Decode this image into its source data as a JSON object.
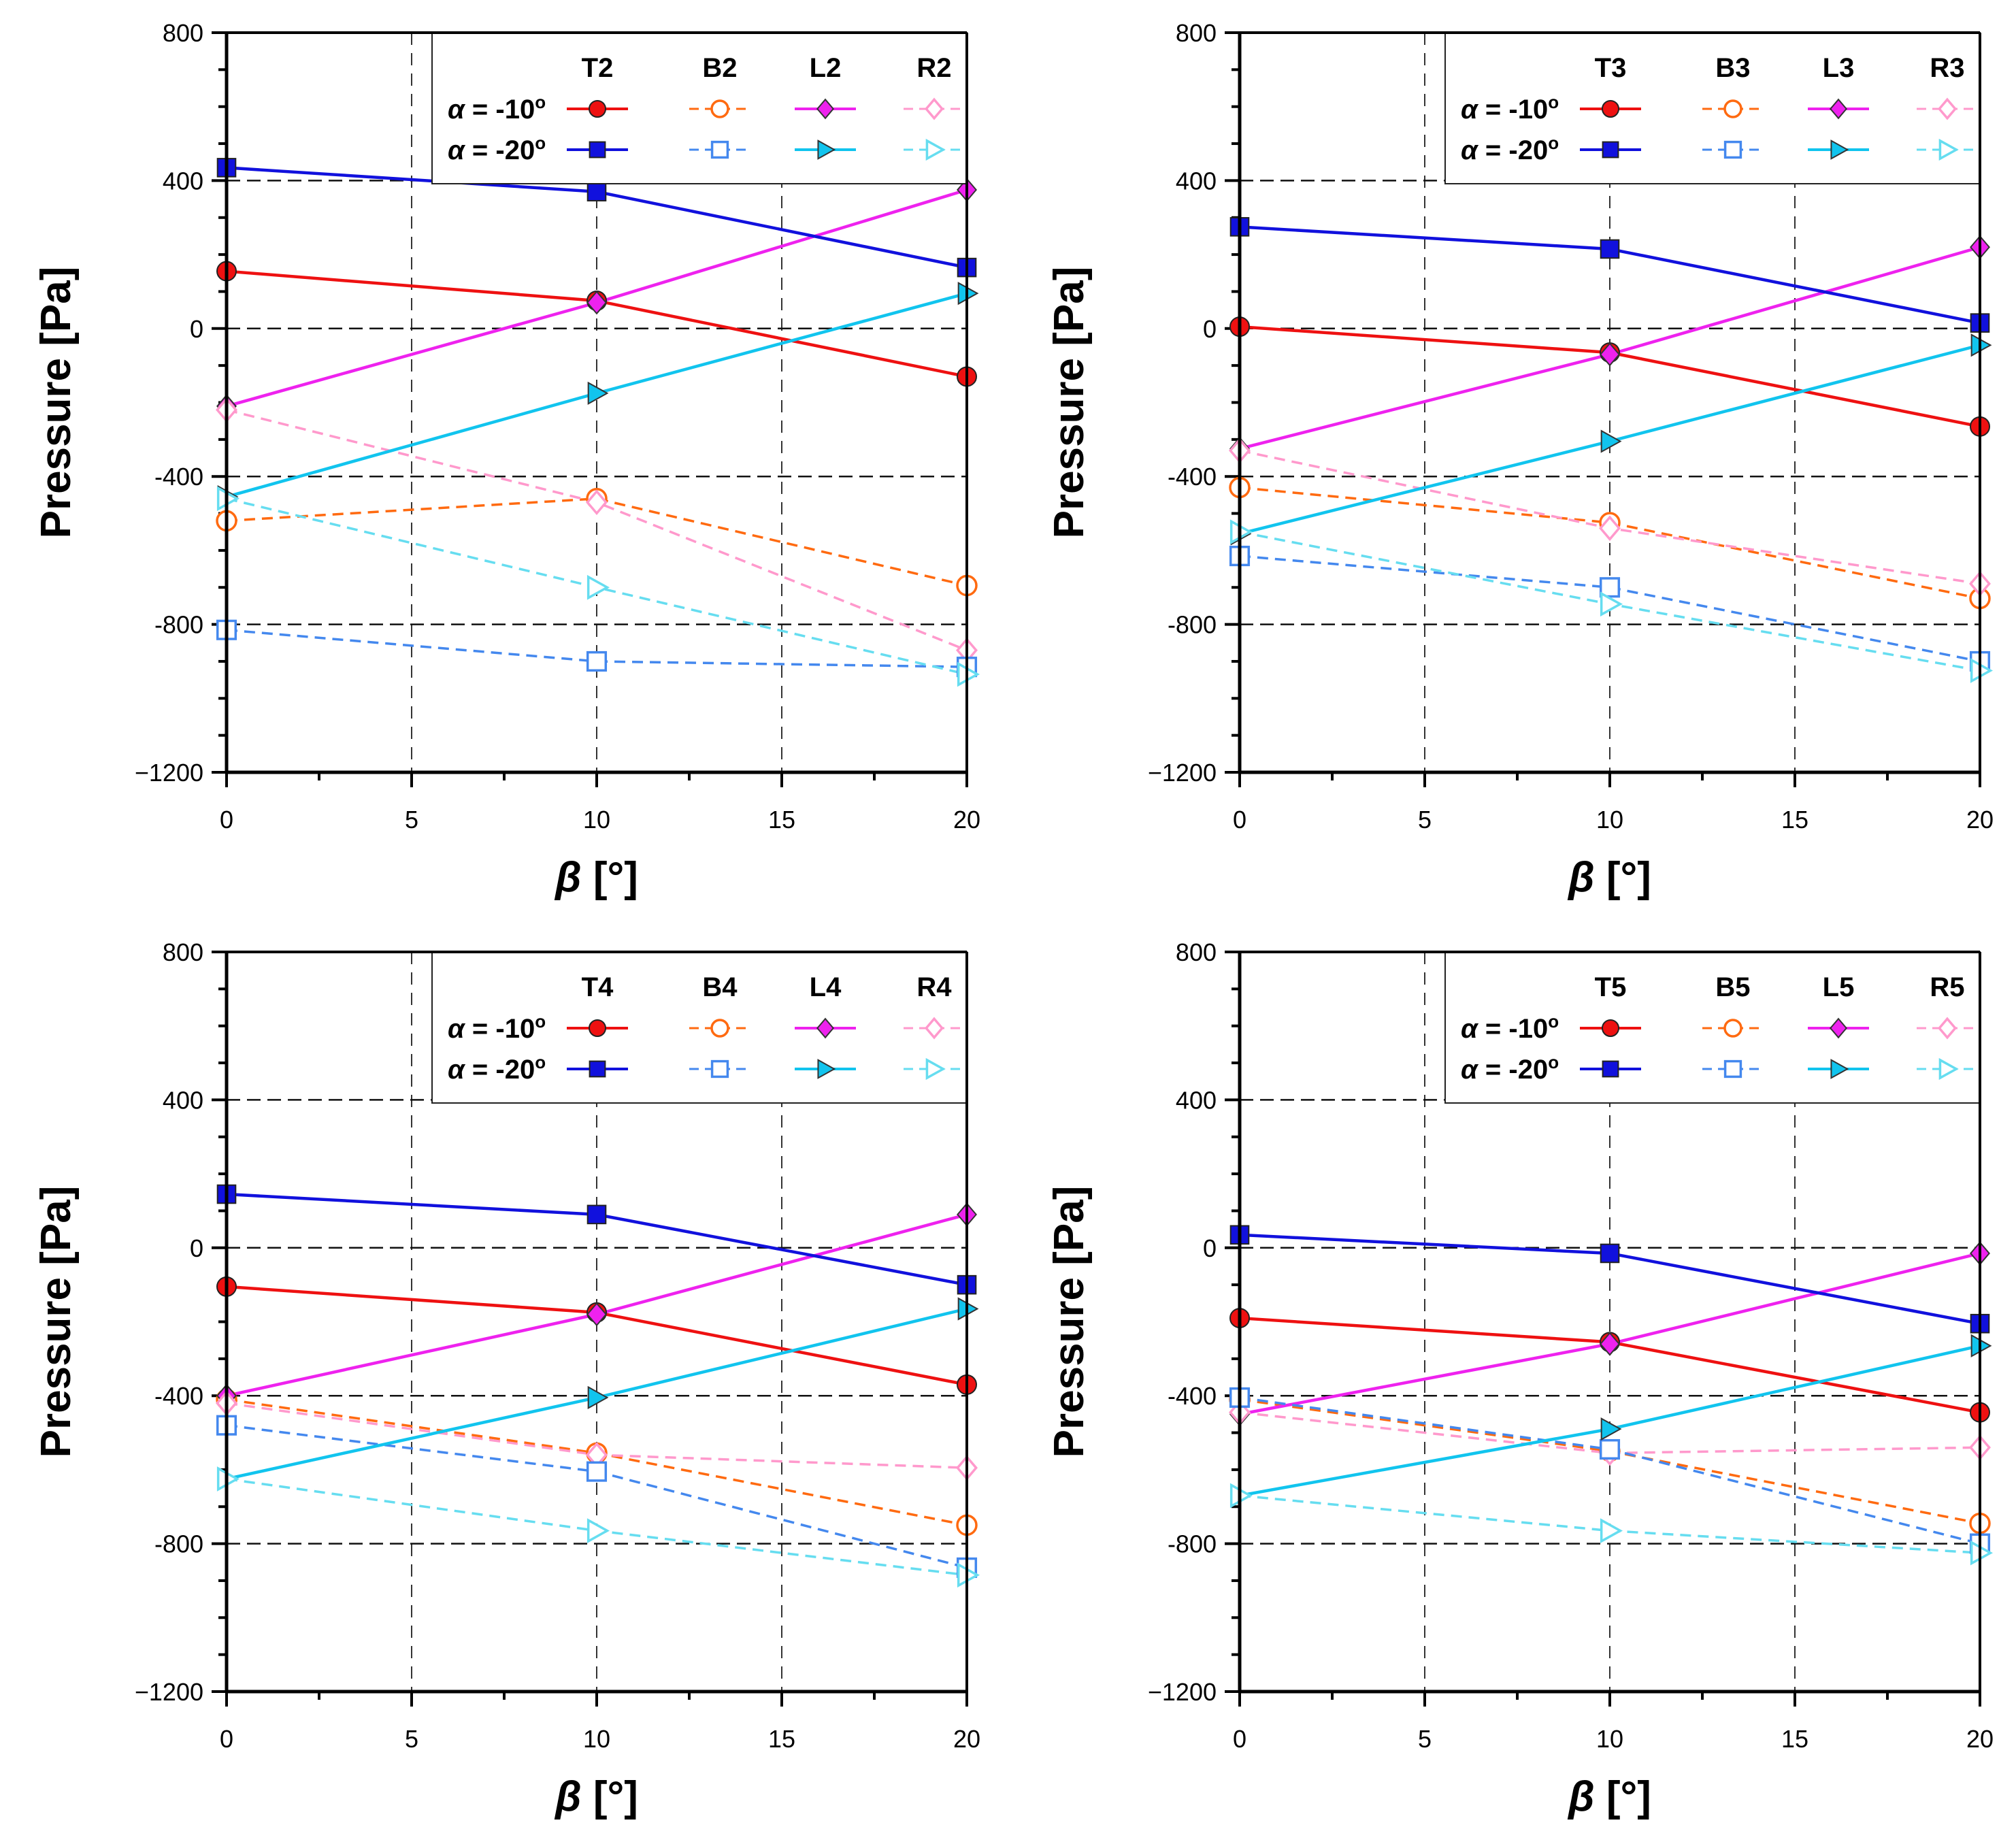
{
  "colors": {
    "T": "#ee1111",
    "B": "#ff6a10",
    "L": "#ee22ee",
    "R": "#ff99cc",
    "T20": "#1111dd",
    "B20": "#4488ee",
    "L20": "#11c4ee",
    "R20": "#66ddf0"
  },
  "chart_data": [
    {
      "type": "line",
      "xlabel_sym": "β",
      "xlabel_unit": "[°]",
      "ylabel": "Pressure [Pa]",
      "xlim": [
        0,
        20
      ],
      "ylim": [
        -1200,
        800
      ],
      "x_ticks": [
        0,
        5,
        10,
        15,
        20
      ],
      "y_ticks": [
        -1200,
        -800,
        -400,
        0,
        400,
        800
      ],
      "y_tick_labels": [
        "−1200",
        "-800",
        "-400",
        "0",
        "400",
        "800"
      ],
      "legend": {
        "columns": [
          "T2",
          "B2",
          "L2",
          "R2"
        ],
        "rows": [
          {
            "alpha": "α",
            "label": " = -10",
            "deg": "o"
          },
          {
            "alpha": "α",
            "label": " = -20",
            "deg": "o"
          }
        ]
      },
      "x": [
        0,
        10,
        20
      ],
      "series": [
        {
          "name": "T2 α=-10°",
          "color_key": "T",
          "marker": "circle",
          "filled": true,
          "dash": false,
          "values": [
            155,
            75,
            -130
          ]
        },
        {
          "name": "B2 α=-10°",
          "color_key": "B",
          "marker": "circle",
          "filled": false,
          "dash": true,
          "values": [
            -520,
            -460,
            -695
          ]
        },
        {
          "name": "L2 α=-10°",
          "color_key": "L",
          "marker": "diamond",
          "filled": true,
          "dash": false,
          "values": [
            -210,
            70,
            375
          ]
        },
        {
          "name": "R2 α=-10°",
          "color_key": "R",
          "marker": "diamond",
          "filled": false,
          "dash": true,
          "values": [
            -220,
            -470,
            -870
          ]
        },
        {
          "name": "T2 α=-20°",
          "color_key": "T20",
          "marker": "square",
          "filled": true,
          "dash": false,
          "values": [
            435,
            370,
            165
          ]
        },
        {
          "name": "B2 α=-20°",
          "color_key": "B20",
          "marker": "square",
          "filled": false,
          "dash": true,
          "values": [
            -815,
            -900,
            -915
          ]
        },
        {
          "name": "L2 α=-20°",
          "color_key": "L20",
          "marker": "triangle",
          "filled": true,
          "dash": false,
          "values": [
            -455,
            -175,
            95
          ]
        },
        {
          "name": "R2 α=-20°",
          "color_key": "R20",
          "marker": "triangle",
          "filled": false,
          "dash": true,
          "values": [
            -460,
            -700,
            -935
          ]
        }
      ]
    },
    {
      "type": "line",
      "xlabel_sym": "β",
      "xlabel_unit": "[°]",
      "ylabel": "Pressure [Pa]",
      "xlim": [
        0,
        20
      ],
      "ylim": [
        -1200,
        800
      ],
      "x_ticks": [
        0,
        5,
        10,
        15,
        20
      ],
      "y_ticks": [
        -1200,
        -800,
        -400,
        0,
        400,
        800
      ],
      "y_tick_labels": [
        "−1200",
        "-800",
        "-400",
        "0",
        "400",
        "800"
      ],
      "legend": {
        "columns": [
          "T3",
          "B3",
          "L3",
          "R3"
        ],
        "rows": [
          {
            "alpha": "α",
            "label": " = -10",
            "deg": "o"
          },
          {
            "alpha": "α",
            "label": " = -20",
            "deg": "o"
          }
        ]
      },
      "x": [
        0,
        10,
        20
      ],
      "series": [
        {
          "name": "T3 α=-10°",
          "color_key": "T",
          "marker": "circle",
          "filled": true,
          "dash": false,
          "values": [
            5,
            -65,
            -265
          ]
        },
        {
          "name": "B3 α=-10°",
          "color_key": "B",
          "marker": "circle",
          "filled": false,
          "dash": true,
          "values": [
            -430,
            -525,
            -730
          ]
        },
        {
          "name": "L3 α=-10°",
          "color_key": "L",
          "marker": "diamond",
          "filled": true,
          "dash": false,
          "values": [
            -325,
            -70,
            220
          ]
        },
        {
          "name": "R3 α=-10°",
          "color_key": "R",
          "marker": "diamond",
          "filled": false,
          "dash": true,
          "values": [
            -330,
            -540,
            -690
          ]
        },
        {
          "name": "T3 α=-20°",
          "color_key": "T20",
          "marker": "square",
          "filled": true,
          "dash": false,
          "values": [
            275,
            215,
            15
          ]
        },
        {
          "name": "B3 α=-20°",
          "color_key": "B20",
          "marker": "square",
          "filled": false,
          "dash": true,
          "values": [
            -615,
            -700,
            -900
          ]
        },
        {
          "name": "L3 α=-20°",
          "color_key": "L20",
          "marker": "triangle",
          "filled": true,
          "dash": false,
          "values": [
            -555,
            -305,
            -45
          ]
        },
        {
          "name": "R3 α=-20°",
          "color_key": "R20",
          "marker": "triangle",
          "filled": false,
          "dash": true,
          "values": [
            -550,
            -745,
            -925
          ]
        }
      ]
    },
    {
      "type": "line",
      "xlabel_sym": "β",
      "xlabel_unit": "[°]",
      "ylabel": "Pressure [Pa]",
      "xlim": [
        0,
        20
      ],
      "ylim": [
        -1200,
        800
      ],
      "x_ticks": [
        0,
        5,
        10,
        15,
        20
      ],
      "y_ticks": [
        -1200,
        -800,
        -400,
        0,
        400,
        800
      ],
      "y_tick_labels": [
        "−1200",
        "-800",
        "-400",
        "0",
        "400",
        "800"
      ],
      "legend": {
        "columns": [
          "T4",
          "B4",
          "L4",
          "R4"
        ],
        "rows": [
          {
            "alpha": "α",
            "label": " = -10",
            "deg": "o"
          },
          {
            "alpha": "α",
            "label": " = -20",
            "deg": "o"
          }
        ]
      },
      "x": [
        0,
        10,
        20
      ],
      "series": [
        {
          "name": "T4 α=-10°",
          "color_key": "T",
          "marker": "circle",
          "filled": true,
          "dash": false,
          "values": [
            -105,
            -175,
            -370
          ]
        },
        {
          "name": "B4 α=-10°",
          "color_key": "B",
          "marker": "circle",
          "filled": false,
          "dash": true,
          "values": [
            -410,
            -555,
            -750
          ]
        },
        {
          "name": "L4 α=-10°",
          "color_key": "L",
          "marker": "diamond",
          "filled": true,
          "dash": false,
          "values": [
            -400,
            -180,
            90
          ]
        },
        {
          "name": "R4 α=-10°",
          "color_key": "R",
          "marker": "diamond",
          "filled": false,
          "dash": true,
          "values": [
            -420,
            -560,
            -595
          ]
        },
        {
          "name": "T4 α=-20°",
          "color_key": "T20",
          "marker": "square",
          "filled": true,
          "dash": false,
          "values": [
            145,
            90,
            -100
          ]
        },
        {
          "name": "B4 α=-20°",
          "color_key": "B20",
          "marker": "square",
          "filled": false,
          "dash": true,
          "values": [
            -480,
            -605,
            -865
          ]
        },
        {
          "name": "L4 α=-20°",
          "color_key": "L20",
          "marker": "triangle",
          "filled": true,
          "dash": false,
          "values": [
            -625,
            -405,
            -165
          ]
        },
        {
          "name": "R4 α=-20°",
          "color_key": "R20",
          "marker": "triangle",
          "filled": false,
          "dash": true,
          "values": [
            -625,
            -765,
            -885
          ]
        }
      ]
    },
    {
      "type": "line",
      "xlabel_sym": "β",
      "xlabel_unit": "[°]",
      "ylabel": "Pressure [Pa]",
      "xlim": [
        0,
        20
      ],
      "ylim": [
        -1200,
        800
      ],
      "x_ticks": [
        0,
        5,
        10,
        15,
        20
      ],
      "y_ticks": [
        -1200,
        -800,
        -400,
        0,
        400,
        800
      ],
      "y_tick_labels": [
        "−1200",
        "-800",
        "-400",
        "0",
        "400",
        "800"
      ],
      "legend": {
        "columns": [
          "T5",
          "B5",
          "L5",
          "R5"
        ],
        "rows": [
          {
            "alpha": "α",
            "label": " = -10",
            "deg": "o"
          },
          {
            "alpha": "α",
            "label": " = -20",
            "deg": "o"
          }
        ]
      },
      "x": [
        0,
        10,
        20
      ],
      "series": [
        {
          "name": "T5 α=-10°",
          "color_key": "T",
          "marker": "circle",
          "filled": true,
          "dash": false,
          "values": [
            -190,
            -255,
            -445
          ]
        },
        {
          "name": "B5 α=-10°",
          "color_key": "B",
          "marker": "circle",
          "filled": false,
          "dash": true,
          "values": [
            -410,
            -550,
            -745
          ]
        },
        {
          "name": "L5 α=-10°",
          "color_key": "L",
          "marker": "diamond",
          "filled": true,
          "dash": false,
          "values": [
            -450,
            -260,
            -15
          ]
        },
        {
          "name": "R5 α=-10°",
          "color_key": "R",
          "marker": "diamond",
          "filled": false,
          "dash": true,
          "values": [
            -445,
            -555,
            -540
          ]
        },
        {
          "name": "T5 α=-20°",
          "color_key": "T20",
          "marker": "square",
          "filled": true,
          "dash": false,
          "values": [
            35,
            -15,
            -205
          ]
        },
        {
          "name": "B5 α=-20°",
          "color_key": "B20",
          "marker": "square",
          "filled": false,
          "dash": true,
          "values": [
            -405,
            -545,
            -800
          ]
        },
        {
          "name": "L5 α=-20°",
          "color_key": "L20",
          "marker": "triangle",
          "filled": true,
          "dash": false,
          "values": [
            -670,
            -490,
            -265
          ]
        },
        {
          "name": "R5 α=-20°",
          "color_key": "R20",
          "marker": "triangle",
          "filled": false,
          "dash": true,
          "values": [
            -670,
            -765,
            -825
          ]
        }
      ]
    }
  ]
}
